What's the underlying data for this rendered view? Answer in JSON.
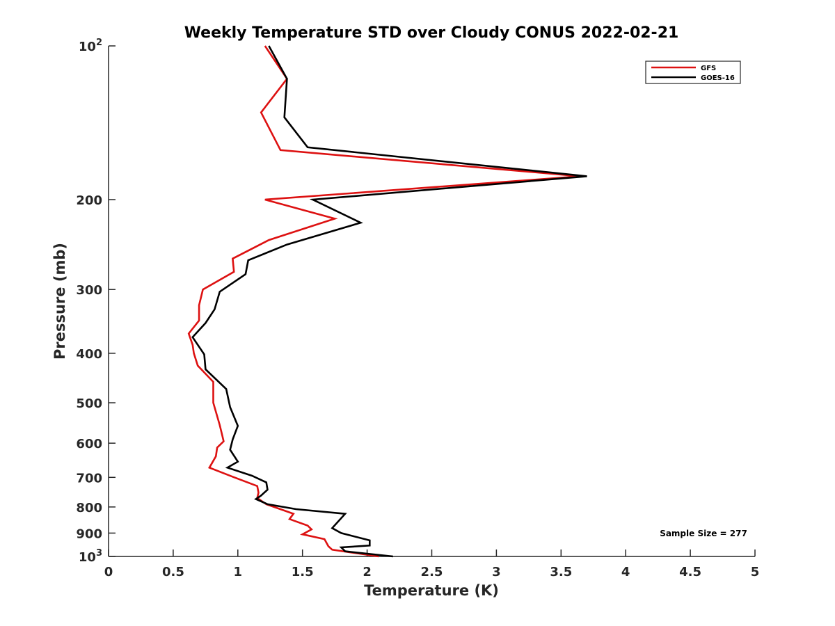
{
  "chart_data": {
    "type": "line",
    "title": "Weekly Temperature STD over Cloudy CONUS 2022-02-21",
    "xlabel": "Temperature (K)",
    "ylabel": "Pressure (mb)",
    "xlim": [
      0,
      5
    ],
    "ylim": [
      100,
      1000
    ],
    "y_scale": "log",
    "y_reversed": true,
    "x_ticks": [
      "0",
      "0.5",
      "1",
      "1.5",
      "2",
      "2.5",
      "3",
      "3.5",
      "4",
      "4.5",
      "5"
    ],
    "y_ticks": [
      {
        "value": 100,
        "base": "10",
        "exp": "2"
      },
      {
        "value": 200,
        "label": "200"
      },
      {
        "value": 300,
        "label": "300"
      },
      {
        "value": 400,
        "label": "400"
      },
      {
        "value": 500,
        "label": "500"
      },
      {
        "value": 600,
        "label": "600"
      },
      {
        "value": 700,
        "label": "700"
      },
      {
        "value": 800,
        "label": "800"
      },
      {
        "value": 900,
        "label": "900"
      },
      {
        "value": 1000,
        "base": "10",
        "exp": "3"
      }
    ],
    "grid": false,
    "legend_position": "top-right",
    "annotation": "Sample Size = 277",
    "series": [
      {
        "name": "GFS",
        "color": "#dd1111",
        "points": [
          [
            1.21,
            100
          ],
          [
            1.38,
            116
          ],
          [
            1.18,
            135
          ],
          [
            1.33,
            160
          ],
          [
            3.65,
            180
          ],
          [
            1.21,
            200
          ],
          [
            1.75,
            218
          ],
          [
            1.24,
            240
          ],
          [
            0.96,
            261
          ],
          [
            0.97,
            277
          ],
          [
            0.73,
            300
          ],
          [
            0.7,
            322
          ],
          [
            0.7,
            345
          ],
          [
            0.62,
            366
          ],
          [
            0.65,
            385
          ],
          [
            0.66,
            400
          ],
          [
            0.69,
            423
          ],
          [
            0.81,
            455
          ],
          [
            0.81,
            500
          ],
          [
            0.86,
            553
          ],
          [
            0.88,
            580
          ],
          [
            0.89,
            595
          ],
          [
            0.84,
            612
          ],
          [
            0.83,
            637
          ],
          [
            0.78,
            670
          ],
          [
            0.96,
            698
          ],
          [
            1.15,
            728
          ],
          [
            1.16,
            750
          ],
          [
            1.15,
            768
          ],
          [
            1.22,
            790
          ],
          [
            1.43,
            825
          ],
          [
            1.4,
            845
          ],
          [
            1.54,
            870
          ],
          [
            1.57,
            885
          ],
          [
            1.5,
            905
          ],
          [
            1.67,
            925
          ],
          [
            1.7,
            955
          ],
          [
            1.73,
            970
          ],
          [
            2.09,
            1000
          ]
        ]
      },
      {
        "name": "GOES-16",
        "color": "#000000",
        "points": [
          [
            1.24,
            100
          ],
          [
            1.38,
            116
          ],
          [
            1.36,
            138
          ],
          [
            1.54,
            158
          ],
          [
            3.7,
            180
          ],
          [
            1.58,
            200
          ],
          [
            1.95,
            222
          ],
          [
            1.38,
            245
          ],
          [
            1.08,
            263
          ],
          [
            1.06,
            280
          ],
          [
            0.86,
            303
          ],
          [
            0.82,
            328
          ],
          [
            0.75,
            349
          ],
          [
            0.65,
            372
          ],
          [
            0.74,
            402
          ],
          [
            0.75,
            430
          ],
          [
            0.91,
            470
          ],
          [
            0.94,
            510
          ],
          [
            1.0,
            555
          ],
          [
            0.96,
            590
          ],
          [
            0.94,
            618
          ],
          [
            1.0,
            652
          ],
          [
            0.92,
            670
          ],
          [
            1.11,
            695
          ],
          [
            1.22,
            716
          ],
          [
            1.23,
            740
          ],
          [
            1.18,
            760
          ],
          [
            1.14,
            772
          ],
          [
            1.23,
            790
          ],
          [
            1.45,
            808
          ],
          [
            1.83,
            825
          ],
          [
            1.73,
            880
          ],
          [
            1.8,
            900
          ],
          [
            2.02,
            930
          ],
          [
            2.02,
            952
          ],
          [
            1.8,
            960
          ],
          [
            1.83,
            977
          ],
          [
            2.2,
            1000
          ]
        ]
      }
    ]
  }
}
